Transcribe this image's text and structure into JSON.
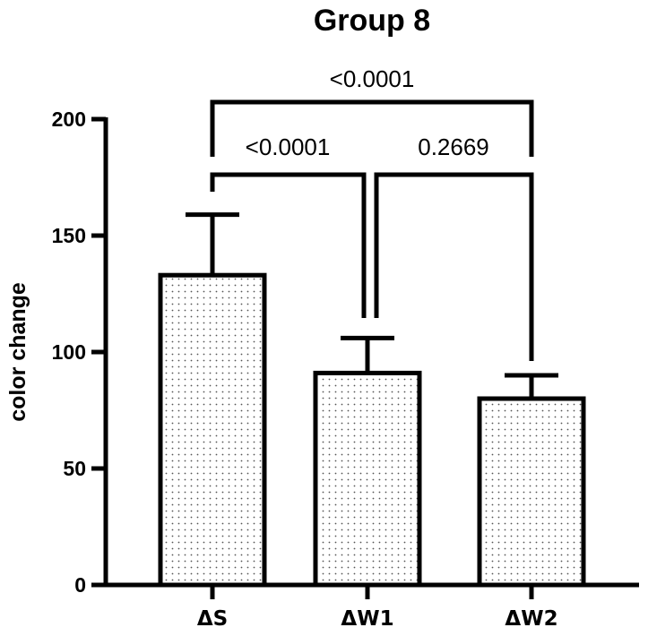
{
  "chart_data": {
    "type": "bar",
    "title": "Group 8",
    "xlabel": "",
    "ylabel": "color change",
    "ylim": [
      0,
      200
    ],
    "yticks": [
      0,
      50,
      100,
      150,
      200
    ],
    "categories": [
      "ΔS",
      "ΔW1",
      "ΔW2"
    ],
    "values": [
      133,
      91,
      80
    ],
    "error_upper": [
      159,
      106,
      90
    ],
    "bar_fill": "dotted",
    "comparisons": [
      {
        "from": "ΔS",
        "to": "ΔW1",
        "p": "<0.0001"
      },
      {
        "from": "ΔW1",
        "to": "ΔW2",
        "p": "0.2669"
      },
      {
        "from": "ΔS",
        "to": "ΔW2",
        "p": "<0.0001"
      }
    ],
    "grid": false,
    "colors": {
      "bar_edge": "#000000",
      "bar_dots": "#555555",
      "background": "#ffffff"
    }
  }
}
